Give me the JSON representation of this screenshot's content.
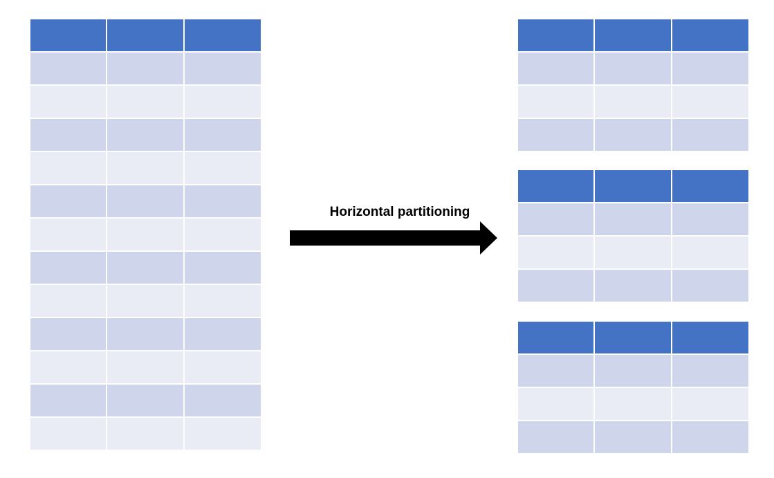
{
  "arrow": {
    "label": "Horizontal partitioning"
  },
  "source_table": {
    "columns": 3,
    "header_rows": 1,
    "data_rows": 12
  },
  "partitions": [
    {
      "columns": 3,
      "header_rows": 1,
      "data_rows": 3
    },
    {
      "columns": 3,
      "header_rows": 1,
      "data_rows": 3
    },
    {
      "columns": 3,
      "header_rows": 1,
      "data_rows": 3
    }
  ],
  "colors": {
    "header": "#4472C4",
    "row_odd": "#CFD5EA",
    "row_even": "#E9EBF5",
    "arrow": "#000000"
  }
}
